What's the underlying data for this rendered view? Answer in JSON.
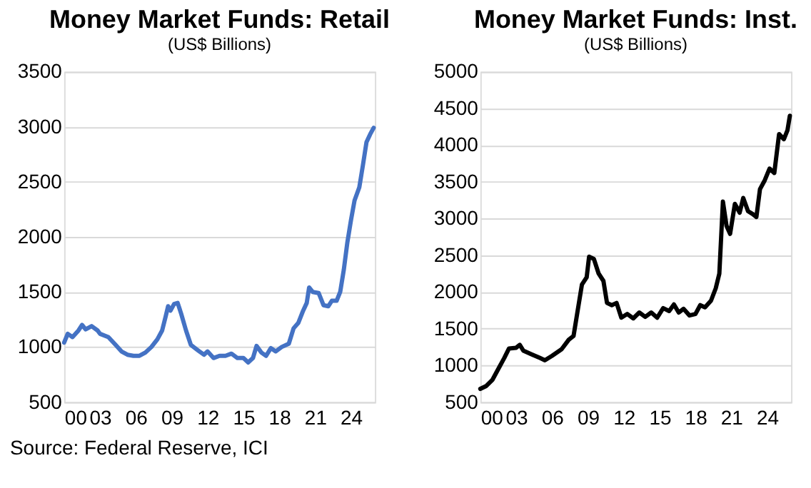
{
  "chart_data": [
    {
      "type": "line",
      "title": "Money Market Funds: Retail",
      "subtitle": "(US$ Billions)",
      "annotations": [
        "Source: Federal Reserve, ICI"
      ],
      "grid": "y",
      "xlim": [
        2000,
        2026
      ],
      "xticks": [
        {
          "value": 2000,
          "label": "00"
        },
        {
          "value": 2003,
          "label": "03"
        },
        {
          "value": 2006,
          "label": "06"
        },
        {
          "value": 2009,
          "label": "09"
        },
        {
          "value": 2012,
          "label": "12"
        },
        {
          "value": 2015,
          "label": "15"
        },
        {
          "value": 2018,
          "label": "18"
        },
        {
          "value": 2021,
          "label": "21"
        },
        {
          "value": 2024,
          "label": "24"
        }
      ],
      "ylim": [
        500,
        3500
      ],
      "yticks": [
        500,
        1000,
        1500,
        2000,
        2500,
        3000,
        3500
      ],
      "series": [
        {
          "color": "#4472c4",
          "x": [
            2000,
            2000.3,
            2000.7,
            2001.2,
            2001.5,
            2001.8,
            2002.3,
            2002.8,
            2003,
            2003.7,
            2004.3,
            2004.8,
            2005.3,
            2005.8,
            2006.3,
            2006.8,
            2007.3,
            2007.8,
            2008.2,
            2008.5,
            2008.7,
            2008.9,
            2009.2,
            2009.5,
            2009.8,
            2010.2,
            2010.6,
            2011.2,
            2011.7,
            2012,
            2012.5,
            2013,
            2013.5,
            2014,
            2014.5,
            2015,
            2015.4,
            2015.8,
            2016.1,
            2016.5,
            2016.9,
            2017.3,
            2017.7,
            2018.2,
            2018.8,
            2019.2,
            2019.6,
            2020,
            2020.3,
            2020.5,
            2020.8,
            2021.3,
            2021.7,
            2022.1,
            2022.4,
            2022.8,
            2023.1,
            2023.4,
            2023.7,
            2024,
            2024.3,
            2024.7,
            2025,
            2025.3,
            2025.6,
            2025.9
          ],
          "values": [
            1040,
            1120,
            1090,
            1150,
            1200,
            1160,
            1190,
            1150,
            1120,
            1090,
            1020,
            960,
            930,
            920,
            920,
            950,
            1000,
            1070,
            1150,
            1280,
            1370,
            1330,
            1390,
            1400,
            1300,
            1150,
            1020,
            970,
            930,
            960,
            900,
            920,
            920,
            940,
            900,
            900,
            860,
            900,
            1010,
            950,
            920,
            990,
            960,
            1000,
            1030,
            1170,
            1220,
            1330,
            1400,
            1540,
            1500,
            1490,
            1380,
            1370,
            1420,
            1420,
            1500,
            1700,
            1950,
            2150,
            2330,
            2450,
            2650,
            2860,
            2930,
            2990
          ]
        }
      ]
    },
    {
      "type": "line",
      "title": "Money Market Funds: Inst.",
      "subtitle": "(US$ Billions)",
      "grid": "y",
      "xlim": [
        2000,
        2026
      ],
      "xticks": [
        {
          "value": 2000,
          "label": "00"
        },
        {
          "value": 2003,
          "label": "03"
        },
        {
          "value": 2006,
          "label": "06"
        },
        {
          "value": 2009,
          "label": "09"
        },
        {
          "value": 2012,
          "label": "12"
        },
        {
          "value": 2015,
          "label": "15"
        },
        {
          "value": 2018,
          "label": "18"
        },
        {
          "value": 2021,
          "label": "21"
        },
        {
          "value": 2024,
          "label": "24"
        }
      ],
      "ylim": [
        500,
        5000
      ],
      "yticks": [
        500,
        1000,
        1500,
        2000,
        2500,
        3000,
        3500,
        4000,
        4500,
        5000
      ],
      "series": [
        {
          "color": "#000000",
          "x": [
            2000,
            2000.5,
            2001,
            2001.5,
            2002,
            2002.4,
            2003,
            2003.3,
            2003.6,
            2004.3,
            2005,
            2005.4,
            2006,
            2006.8,
            2007.4,
            2007.8,
            2008.1,
            2008.5,
            2008.9,
            2009.1,
            2009.5,
            2009.9,
            2010.3,
            2010.6,
            2011,
            2011.4,
            2011.8,
            2012.3,
            2012.8,
            2013.3,
            2013.8,
            2014.3,
            2014.8,
            2015.3,
            2015.8,
            2016.2,
            2016.6,
            2017,
            2017.5,
            2018,
            2018.4,
            2018.8,
            2019.3,
            2019.7,
            2020,
            2020.3,
            2020.6,
            2020.9,
            2021.3,
            2021.7,
            2022,
            2022.4,
            2022.8,
            2023.1,
            2023.4,
            2023.8,
            2024.2,
            2024.6,
            2025,
            2025.4,
            2025.7,
            2025.9
          ],
          "values": [
            680,
            720,
            800,
            950,
            1100,
            1230,
            1240,
            1280,
            1200,
            1150,
            1100,
            1070,
            1130,
            1220,
            1350,
            1400,
            1700,
            2100,
            2200,
            2480,
            2450,
            2250,
            2150,
            1850,
            1820,
            1850,
            1650,
            1700,
            1640,
            1720,
            1660,
            1720,
            1650,
            1780,
            1740,
            1830,
            1720,
            1770,
            1680,
            1700,
            1820,
            1790,
            1880,
            2050,
            2250,
            3230,
            2900,
            2790,
            3200,
            3080,
            3280,
            3100,
            3060,
            3020,
            3400,
            3520,
            3680,
            3620,
            4150,
            4080,
            4200,
            4400
          ]
        }
      ]
    }
  ]
}
